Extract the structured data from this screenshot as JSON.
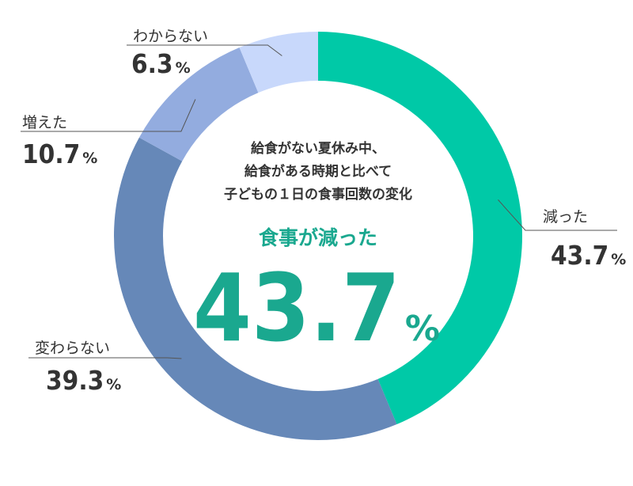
{
  "chart_data": {
    "type": "pie",
    "categories": [
      "減った",
      "変わらない",
      "増えた",
      "わからない"
    ],
    "values": [
      43.7,
      39.3,
      10.7,
      6.3
    ],
    "value_labels": [
      "43.7%",
      "39.3%",
      "10.7%",
      "6.3%"
    ],
    "percent_sign": "%",
    "colors": [
      "#00c9a7",
      "#6688b8",
      "#93acdf",
      "#c8d8fb"
    ],
    "legend_position": "none",
    "center": {
      "description_lines": [
        "給食がない夏休み中、",
        "給食がある時期と比べて",
        "子どもの１日の食事回数の変化"
      ],
      "highlight_label": "食事が減った",
      "highlight_value": "43.7",
      "highlight_sign": "%",
      "highlight_color": "#1aa88f"
    }
  }
}
